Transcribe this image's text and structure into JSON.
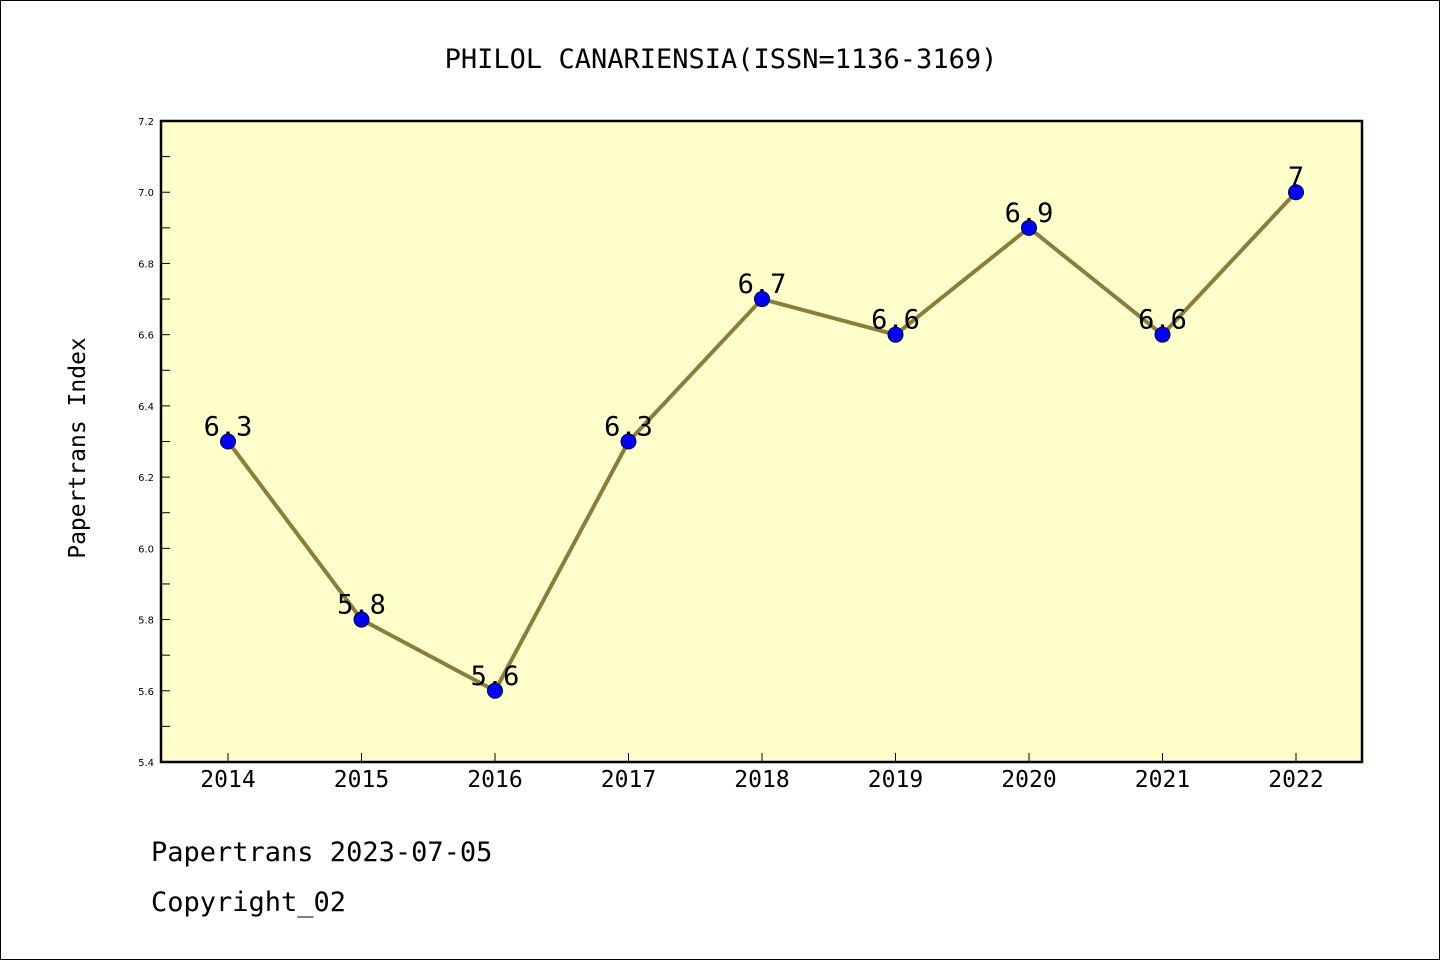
{
  "footer": {
    "line1": "Papertrans 2023-07-05",
    "line2": "Copyright_02"
  },
  "chart_data": {
    "type": "line",
    "title": "PHILOL CANARIENSIA(ISSN=1136-3169)",
    "xlabel": "",
    "ylabel": "Papertrans Index",
    "categories": [
      "2014",
      "2015",
      "2016",
      "2017",
      "2018",
      "2019",
      "2020",
      "2021",
      "2022"
    ],
    "series": [
      {
        "values": [
          6.3,
          5.8,
          5.6,
          6.3,
          6.7,
          6.6,
          6.9,
          6.6,
          7.0
        ],
        "data_labels": [
          "6.3",
          "5.8",
          "5.6",
          "6.3",
          "6.7",
          "6.6",
          "6.9",
          "6.6",
          "7"
        ]
      }
    ],
    "ylim": [
      5.4,
      7.2
    ],
    "yticks": [
      "5.4",
      "5.6",
      "5.8",
      "6.0",
      "6.2",
      "6.4",
      "6.6",
      "6.8",
      "7.0",
      "7.2"
    ],
    "grid": false,
    "legend": "none",
    "colors": {
      "plot_background": "#ffffcc",
      "line": "#8b7d3a",
      "marker": "#0000ff"
    }
  }
}
